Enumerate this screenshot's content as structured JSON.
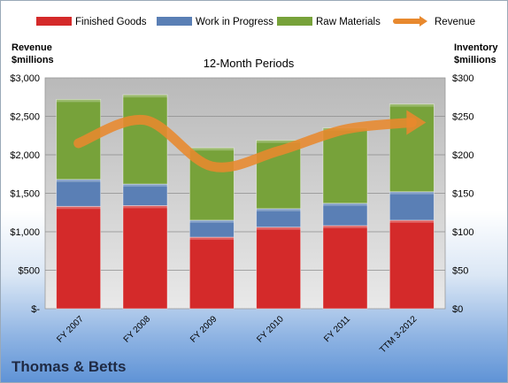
{
  "chart_data": {
    "type": "bar",
    "title": "12-Month Periods",
    "company": "Thomas & Betts",
    "categories": [
      "FY 2007",
      "FY 2008",
      "FY 2009",
      "FY 2010",
      "FY 2011",
      "TTM 3-2012"
    ],
    "series": [
      {
        "name": "Finished Goods",
        "axis": "right",
        "stacked": true,
        "color": "#d42a2a",
        "values": [
          133,
          134,
          93,
          106,
          108,
          115
        ]
      },
      {
        "name": "Work in Progress",
        "axis": "right",
        "stacked": true,
        "color": "#5a7fb5",
        "values": [
          35,
          28,
          22,
          24,
          29,
          37
        ]
      },
      {
        "name": "Raw Materials",
        "axis": "right",
        "stacked": true,
        "color": "#77a23a",
        "values": [
          104,
          116,
          94,
          89,
          98,
          114
        ]
      },
      {
        "name": "Revenue",
        "axis": "left",
        "type": "line",
        "color": "#e8892e",
        "values": [
          2150,
          2450,
          1850,
          2050,
          2330,
          2420
        ]
      }
    ],
    "left_axis": {
      "label_line1": "Revenue",
      "label_line2": "$millions",
      "min": 0,
      "max": 3000,
      "ticks": [
        "$-",
        "$500",
        "$1,000",
        "$1,500",
        "$2,000",
        "$2,500",
        "$3,000"
      ]
    },
    "right_axis": {
      "label_line1": "Inventory",
      "label_line2": "$millions",
      "min": 0,
      "max": 300,
      "ticks": [
        "$0",
        "$50",
        "$100",
        "$150",
        "$200",
        "$250",
        "$300"
      ]
    },
    "legend_position": "top",
    "grid": true
  }
}
